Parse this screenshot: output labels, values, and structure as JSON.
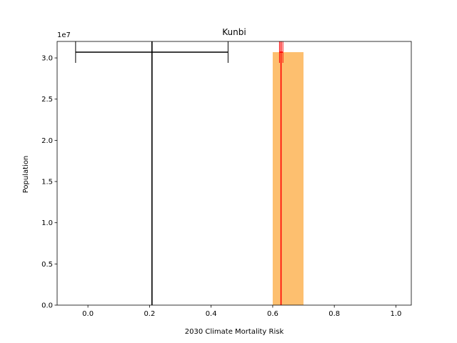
{
  "chart_data": {
    "type": "bar",
    "title": "Kunbi",
    "xlabel": "2030 Climate Mortality Risk",
    "ylabel": "Population",
    "y_offset_label": "1e7",
    "xlim": [
      -0.1,
      1.05
    ],
    "ylim": [
      0,
      3.2
    ],
    "y_scale_factor": 10000000,
    "x_ticks": [
      0.0,
      0.2,
      0.4,
      0.6,
      0.8,
      1.0
    ],
    "x_tick_labels": [
      "0.0",
      "0.2",
      "0.4",
      "0.6",
      "0.8",
      "1.0"
    ],
    "y_ticks": [
      0.0,
      0.5,
      1.0,
      1.5,
      2.0,
      2.5,
      3.0
    ],
    "y_tick_labels": [
      "0.0",
      "0.5",
      "1.0",
      "1.5",
      "2.0",
      "2.5",
      "3.0"
    ],
    "bars": [
      {
        "x_start": 0.6,
        "x_end": 0.7,
        "value": 3.07
      }
    ],
    "vertical_lines": [
      {
        "x": 0.208,
        "color": "#000000"
      },
      {
        "x": 0.627,
        "color": "#ff0000"
      }
    ],
    "error_bars": [
      {
        "center": 0.208,
        "low": -0.04,
        "high": 0.455,
        "y": 3.07,
        "cap_half": 0.13,
        "color": "#000000"
      },
      {
        "center": 0.627,
        "low": 0.622,
        "high": 0.633,
        "y": 3.07,
        "cap_half": 0.13,
        "color": "#ff0000"
      }
    ],
    "colors": {
      "bar": "#fdbf6f",
      "axis": "#000000"
    }
  }
}
